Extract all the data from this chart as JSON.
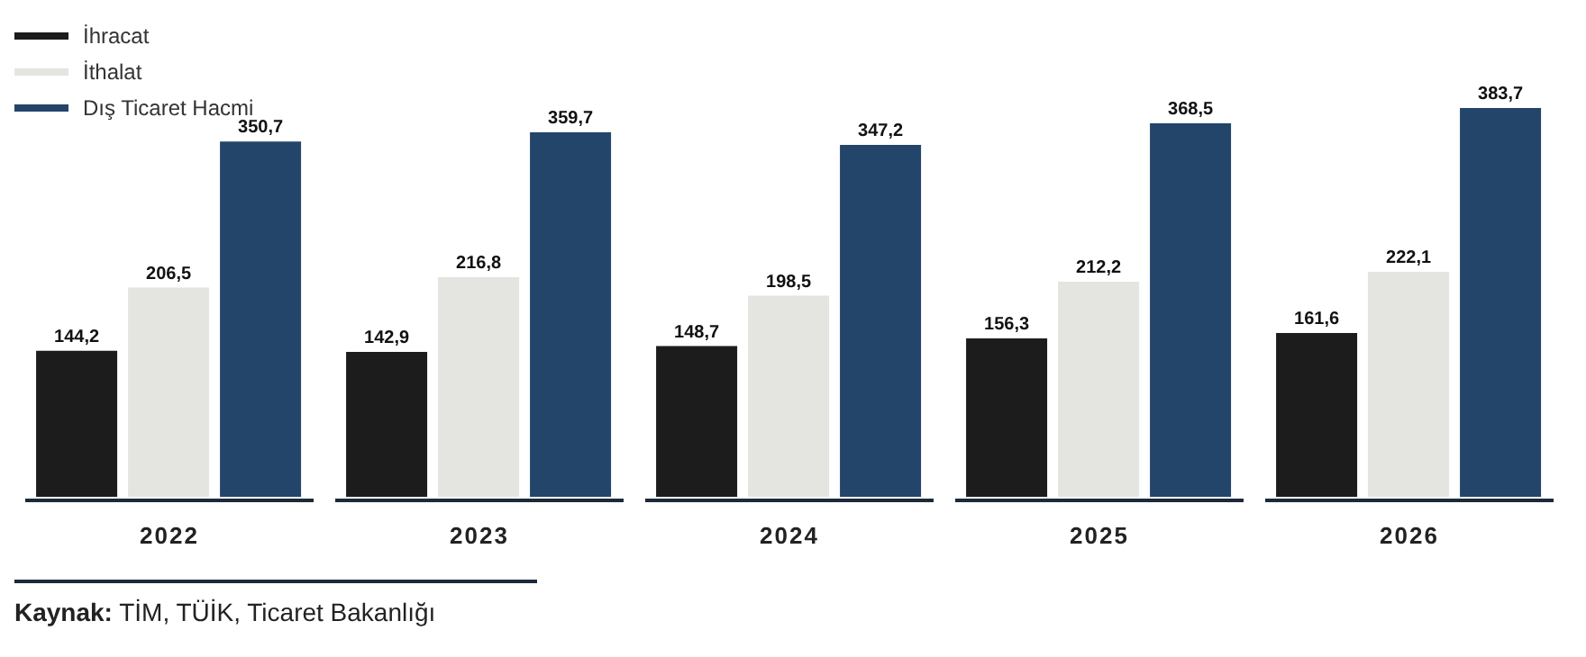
{
  "chart_data": {
    "type": "bar",
    "categories": [
      "2022",
      "2023",
      "2024",
      "2025",
      "2026"
    ],
    "series": [
      {
        "name": "İhracat",
        "color": "#1c1c1c",
        "values": [
          144.2,
          142.9,
          148.7,
          156.3,
          161.6
        ],
        "value_labels": [
          "144,2",
          "142,9",
          "148,7",
          "156,3",
          "161,6"
        ]
      },
      {
        "name": "İthalat",
        "color": "#e4e5e1",
        "values": [
          206.5,
          216.8,
          198.5,
          212.2,
          222.1
        ],
        "value_labels": [
          "206,5",
          "216,8",
          "198,5",
          "212,2",
          "222,1"
        ]
      },
      {
        "name": "Dış Ticaret Hacmi",
        "color": "#24456a",
        "values": [
          350.7,
          359.7,
          347.2,
          368.5,
          383.7
        ],
        "value_labels": [
          "350,7",
          "359,7",
          "347,2",
          "368,5",
          "383,7"
        ]
      }
    ],
    "legend": "top left",
    "grid": false,
    "annotations": [
      "Kaynak: TİM, TÜİK, Ticaret Bakanlığı"
    ]
  }
}
